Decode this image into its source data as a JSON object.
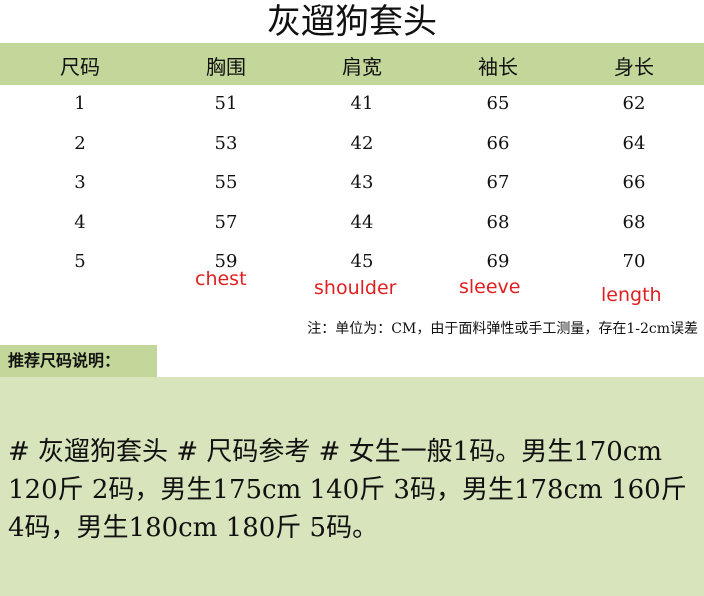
{
  "title": "灰遛狗套头",
  "headers": [
    "尺码",
    "胸围",
    "肩宽",
    "袖长",
    "身长"
  ],
  "rows": [
    [
      "1",
      "51",
      "41",
      "65",
      "62"
    ],
    [
      "2",
      "53",
      "42",
      "66",
      "64"
    ],
    [
      "3",
      "55",
      "43",
      "67",
      "66"
    ],
    [
      "4",
      "57",
      "44",
      "68",
      "68"
    ],
    [
      "5",
      "59",
      "45",
      "69",
      "70"
    ]
  ],
  "english_labels": [
    "chest",
    "shoulder",
    "sleeve",
    "length"
  ],
  "note": "注：单位为：CM，由于面料弹性或手工测量，存在1-2cm误差",
  "recommend_label": "推荐尺码说明：",
  "recommend_text": "# 灰遛狗套头 # 尺码参考 # 女生一般1码。男生170cm 120斤 2码，男生175cm 140斤 3码，男生178cm 160斤 4码，男生180cm 180斤 5码。",
  "colors": {
    "header_green": "#c4d79b",
    "box_green": "#d8e4bc",
    "label_red": "#e02020"
  }
}
